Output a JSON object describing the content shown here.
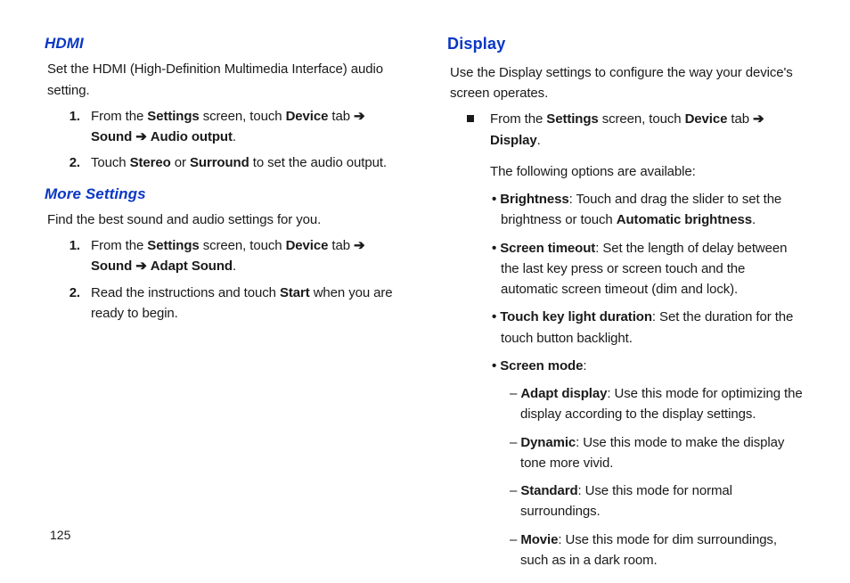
{
  "pageNumber": "125",
  "left": {
    "hdmi": {
      "heading": "HDMI",
      "intro": "Set the HDMI (High-Definition Multimedia Interface) audio setting.",
      "steps": [
        {
          "n": "1.",
          "pre": "From the ",
          "b1": "Settings",
          "mid1": " screen, touch ",
          "b2": "Device",
          "mid2": " tab ",
          "arrow1": "➔",
          "sp1": " ",
          "b3": "Sound",
          "sp2": " ",
          "arrow2": "➔",
          "sp3": " ",
          "b4": "Audio output",
          "end": "."
        },
        {
          "n": "2.",
          "pre": "Touch ",
          "b1": "Stereo",
          "mid1": " or ",
          "b2": "Surround",
          "end": " to set the audio output."
        }
      ]
    },
    "more": {
      "heading": "More Settings",
      "intro": "Find the best sound and audio settings for you.",
      "steps": [
        {
          "n": "1.",
          "pre": "From the ",
          "b1": "Settings",
          "mid1": " screen, touch ",
          "b2": "Device",
          "mid2": " tab ",
          "arrow1": "➔",
          "sp1": " ",
          "b3": "Sound",
          "sp2": " ",
          "arrow2": "➔",
          "sp3": " ",
          "b4": "Adapt Sound",
          "end": "."
        },
        {
          "n": "2.",
          "pre": "Read the instructions and touch ",
          "b1": "Start",
          "end": " when you are ready to begin."
        }
      ]
    }
  },
  "right": {
    "display": {
      "heading": "Display",
      "intro": "Use the Display settings to configure the way your device's screen operates.",
      "lead": {
        "pre": "From the ",
        "b1": "Settings",
        "mid1": " screen, touch ",
        "b2": "Device",
        "mid2": " tab ",
        "arrow1": "➔",
        "sp1": " ",
        "b3": "Display",
        "end": "."
      },
      "following": "The following options are available:",
      "bullets": [
        {
          "b": "Brightness",
          "t1": ": Touch and drag the slider to set the brightness or touch ",
          "b2": "Automatic brightness",
          "t2": "."
        },
        {
          "b": "Screen timeout",
          "t1": ": Set the length of delay between the last key press or screen touch and the automatic screen timeout (dim and lock)."
        },
        {
          "b": "Touch key light duration",
          "t1": ": Set the duration for the touch button backlight."
        },
        {
          "b": "Screen mode",
          "t1": ":"
        }
      ],
      "modes": [
        {
          "b": "Adapt display",
          "t": ": Use this mode for optimizing the display according to the display settings."
        },
        {
          "b": "Dynamic",
          "t": ": Use this mode to make the display tone more vivid."
        },
        {
          "b": "Standard",
          "t": ": Use this mode for normal surroundings."
        },
        {
          "b": "Movie",
          "t": ": Use this mode for dim surroundings, such as in a dark room."
        }
      ]
    }
  }
}
